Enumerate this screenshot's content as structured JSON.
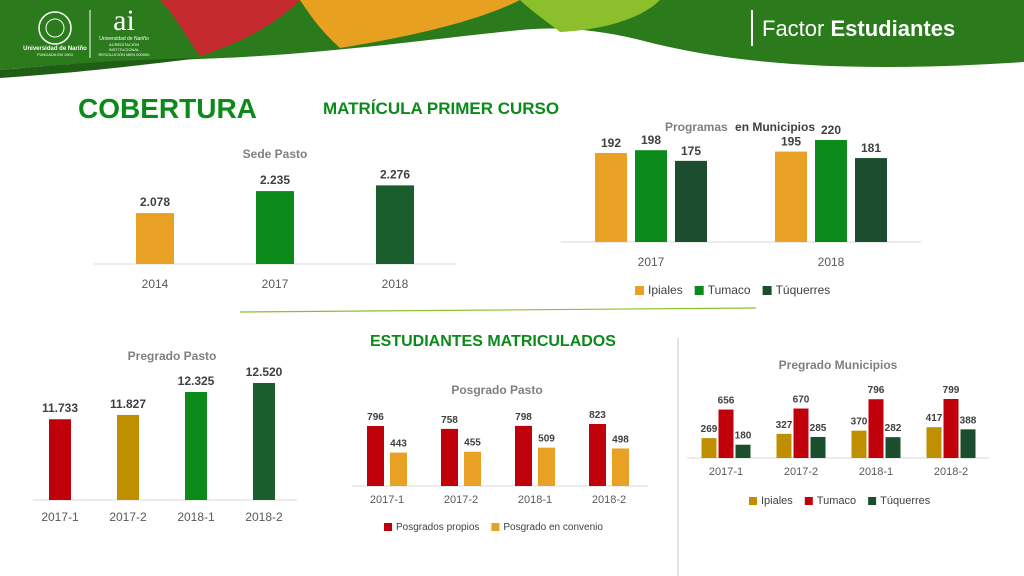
{
  "header": {
    "brand_prefix": "Factor",
    "brand_name": "Estudiantes",
    "logo_university_line1": "Universidad de Nariño",
    "logo_university_line2": "FUNDADA EN 1904",
    "logo_ai": "ai",
    "logo_ai_line1": "Universidad de Nariño",
    "logo_ai_line2": "ACREDITACIÓN INSTITUCIONAL",
    "logo_ai_line3": "RESOLUCIÓN MEN 000000"
  },
  "sections": {
    "cobertura": "COBERTURA",
    "matricula": "MATRÍCULA PRIMER CURSO",
    "estudiantes": "ESTUDIANTES MATRICULADOS"
  },
  "colors": {
    "header_green": "#2e7d1f",
    "header_orange": "#e8a020",
    "header_red": "#c0282c",
    "cobertura_green": "#0b8a1a",
    "section_green": "#0b8a1a",
    "ipiales": "#e8a025",
    "tumaco": "#0b8a1a",
    "tuquerres": "#1b4d2e",
    "pregrado_red": "#c0000b",
    "pregrado_gold": "#bf8f00",
    "posgrado_orange": "#e8a025",
    "dark_green": "#1b5e2e"
  },
  "chart_data": [
    {
      "id": "sede-pasto",
      "type": "bar",
      "title": "Sede  Pasto",
      "categories": [
        "2014",
        "2017",
        "2018"
      ],
      "values": [
        2078,
        2235,
        2276
      ],
      "labels": [
        "2.078",
        "2.235",
        "2.276"
      ],
      "colors": [
        "#e8a025",
        "#0b8a1a",
        "#1b5e2e"
      ],
      "ylim": [
        1950,
        2300
      ]
    },
    {
      "id": "programas-municipios",
      "type": "bar",
      "title_prefix": "Programas",
      "title_suffix": "en Municipios",
      "categories": [
        "2017",
        "2018"
      ],
      "series": [
        {
          "name": "Ipiales",
          "values": [
            192,
            195
          ],
          "labels": [
            "192",
            "195"
          ],
          "color": "#e8a025"
        },
        {
          "name": "Tumaco",
          "values": [
            198,
            220
          ],
          "labels": [
            "198",
            "220"
          ],
          "color": "#0b8a1a"
        },
        {
          "name": "Túquerres",
          "values": [
            175,
            181
          ],
          "labels": [
            "175",
            "181"
          ],
          "color": "#1b4d2e"
        }
      ],
      "ylim": [
        0,
        220
      ]
    },
    {
      "id": "pregrado-pasto",
      "type": "bar",
      "title": "Pregrado Pasto",
      "categories": [
        "2017-1",
        "2017-2",
        "2018-1",
        "2018-2"
      ],
      "values": [
        11733,
        11827,
        12325,
        12520
      ],
      "labels": [
        "11.733",
        "11.827",
        "12.325",
        "12.520"
      ],
      "colors": [
        "#c0000b",
        "#bf8f00",
        "#0b8a1a",
        "#1b5e2e"
      ],
      "ylim": [
        11000,
        12520
      ]
    },
    {
      "id": "posgrado-pasto",
      "type": "bar",
      "title": "Posgrado Pasto",
      "categories": [
        "2017-1",
        "2017-2",
        "2018-1",
        "2018-2"
      ],
      "series": [
        {
          "name": "Posgrados propios",
          "values": [
            796,
            758,
            798,
            823
          ],
          "labels": [
            "796",
            "758",
            "798",
            "823"
          ],
          "color": "#c0000b"
        },
        {
          "name": "Posgrado en convenio",
          "values": [
            443,
            455,
            509,
            498
          ],
          "labels": [
            "443",
            "455",
            "509",
            "498"
          ],
          "color": "#e8a025"
        }
      ],
      "ylim": [
        0,
        823
      ]
    },
    {
      "id": "pregrado-municipios",
      "type": "bar",
      "title": "Pregrado Municipios",
      "categories": [
        "2017-1",
        "2017-2",
        "2018-1",
        "2018-2"
      ],
      "series": [
        {
          "name": "Ipiales",
          "values": [
            269,
            327,
            370,
            417
          ],
          "labels": [
            "269",
            "327",
            "370",
            "417"
          ],
          "color": "#bf8f00"
        },
        {
          "name": "Tumaco",
          "values": [
            656,
            670,
            796,
            799
          ],
          "labels": [
            "656",
            "670",
            "796",
            "799"
          ],
          "color": "#c0000b"
        },
        {
          "name": "Túquerres",
          "values": [
            180,
            285,
            282,
            388
          ],
          "labels": [
            "180",
            "285",
            "282",
            "388"
          ],
          "color": "#1b4d2e"
        }
      ],
      "ylim": [
        0,
        799
      ]
    }
  ]
}
